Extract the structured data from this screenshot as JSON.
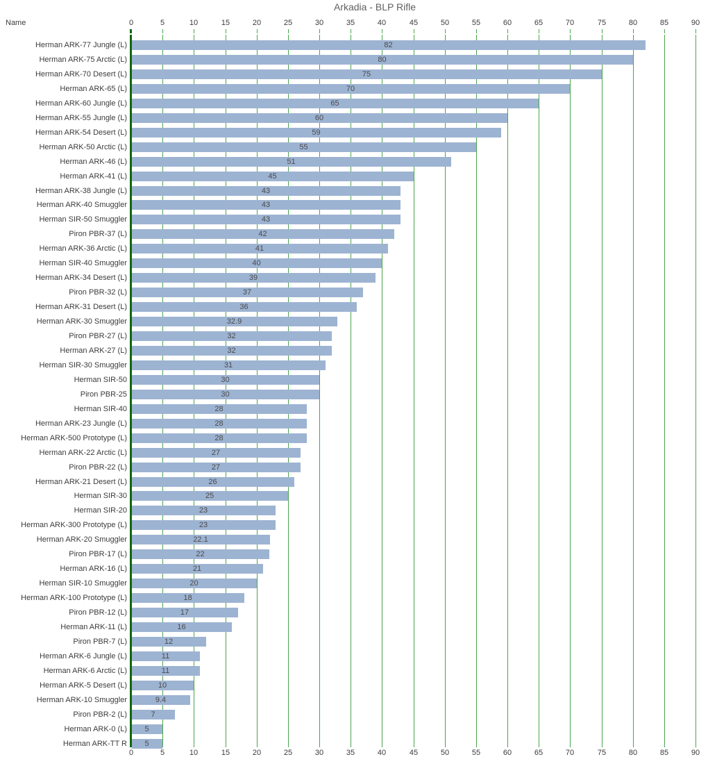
{
  "chart_data": {
    "type": "bar",
    "orientation": "horizontal",
    "title": "Arkadia - BLP Rifle",
    "y_axis_header": "Name",
    "xlabel": "",
    "ylabel": "Name",
    "x_axis": {
      "min": 0,
      "max": 90,
      "step": 5,
      "position": "top-and-bottom"
    },
    "grid": true,
    "legend": "none",
    "categories": [
      "Herman ARK-77 Jungle (L)",
      "Herman ARK-75 Arctic (L)",
      "Herman ARK-70 Desert (L)",
      "Herman ARK-65 (L)",
      "Herman ARK-60 Jungle (L)",
      "Herman ARK-55 Jungle (L)",
      "Herman ARK-54 Desert (L)",
      "Herman ARK-50 Arctic (L)",
      "Herman ARK-46 (L)",
      "Herman ARK-41 (L)",
      "Herman ARK-38 Jungle (L)",
      "Herman ARK-40 Smuggler",
      "Herman SIR-50 Smuggler",
      "Piron PBR-37 (L)",
      "Herman ARK-36 Arctic (L)",
      "Herman SIR-40 Smuggler",
      "Herman ARK-34 Desert (L)",
      "Piron PBR-32 (L)",
      "Herman ARK-31 Desert (L)",
      "Herman ARK-30 Smuggler",
      "Piron PBR-27 (L)",
      "Herman ARK-27 (L)",
      "Herman SIR-30 Smuggler",
      "Herman SIR-50",
      "Piron PBR-25",
      "Herman SIR-40",
      "Herman ARK-23 Jungle (L)",
      "Herman ARK-500 Prototype (L)",
      "Herman ARK-22 Arctic (L)",
      "Piron PBR-22 (L)",
      "Herman ARK-21 Desert (L)",
      "Herman SIR-30",
      "Herman SIR-20",
      "Herman ARK-300 Prototype (L)",
      "Herman ARK-20 Smuggler",
      "Piron PBR-17 (L)",
      "Herman ARK-16 (L)",
      "Herman SIR-10 Smuggler",
      "Herman ARK-100 Prototype (L)",
      "Piron PBR-12 (L)",
      "Herman ARK-11 (L)",
      "Piron PBR-7 (L)",
      "Herman ARK-6 Jungle (L)",
      "Herman ARK-6 Arctic (L)",
      "Herman ARK-5 Desert (L)",
      "Herman ARK-10 Smuggler",
      "Piron PBR-2 (L)",
      "Herman ARK-0 (L)",
      "Herman ARK-TT R"
    ],
    "values": [
      82,
      80,
      75,
      70,
      65,
      60,
      59,
      55,
      51,
      45,
      43,
      43,
      43,
      42,
      41,
      40,
      39,
      37,
      36,
      32.9,
      32,
      32,
      31,
      30,
      30,
      28,
      28,
      28,
      27,
      27,
      26,
      25,
      23,
      23,
      22.1,
      22,
      21,
      20,
      18,
      17,
      16,
      12,
      11,
      11,
      10,
      9.4,
      7,
      5,
      5
    ],
    "colors": {
      "bar": "#9db3d2",
      "gridline": "#4aa44a",
      "zero_axis": "#0e680e",
      "label_text": "#3b3b3b",
      "value_text": "#4a4a4a",
      "title_text": "#5f5f5f",
      "background": "#ffffff"
    }
  }
}
